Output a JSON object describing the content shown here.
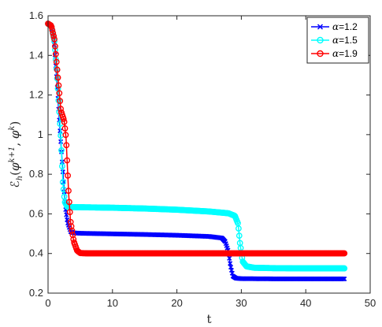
{
  "chart_data": {
    "type": "line",
    "xlabel": "t",
    "ylabel": "ℰ_h(φ^{k+1}, φ^k)",
    "ylabel_parts": {
      "main": "ℰ",
      "sub": "h",
      "open": "(",
      "phi1": "φ",
      "sup1": "k+1",
      "comma": ", ",
      "phi2": "φ",
      "sup2": "k",
      "close": ")"
    },
    "xlim": [
      0,
      50
    ],
    "ylim": [
      0.2,
      1.6
    ],
    "xticks": [
      "0",
      "10",
      "20",
      "30",
      "40",
      "50"
    ],
    "yticks": [
      "0.2",
      "0.4",
      "0.6",
      "0.8",
      "1",
      "1.2",
      "1.4",
      "1.6"
    ],
    "grid": false,
    "legend_position": "top-right",
    "x_end": 46,
    "series": [
      {
        "name": "α=1.2",
        "legend_var": "α",
        "legend_val": "=1.2",
        "color": "#0000ff",
        "marker": "x",
        "points": [
          [
            0,
            1.56
          ],
          [
            0.5,
            1.55
          ],
          [
            1,
            1.45
          ],
          [
            1.5,
            1.2
          ],
          [
            2,
            0.95
          ],
          [
            2.5,
            0.72
          ],
          [
            2.7,
            0.63
          ],
          [
            3,
            0.56
          ],
          [
            3.5,
            0.51
          ],
          [
            4,
            0.504
          ],
          [
            5,
            0.502
          ],
          [
            10,
            0.499
          ],
          [
            15,
            0.496
          ],
          [
            20,
            0.492
          ],
          [
            25,
            0.486
          ],
          [
            27,
            0.478
          ],
          [
            27.5,
            0.46
          ],
          [
            28,
            0.41
          ],
          [
            28.3,
            0.34
          ],
          [
            28.7,
            0.285
          ],
          [
            29.2,
            0.275
          ],
          [
            30,
            0.273
          ],
          [
            35,
            0.272
          ],
          [
            40,
            0.272
          ],
          [
            46,
            0.272
          ]
        ]
      },
      {
        "name": "α=1.5",
        "legend_var": "α",
        "legend_val": "=1.5",
        "color": "#00ffff",
        "marker": "circle-left",
        "points": [
          [
            0,
            1.56
          ],
          [
            0.5,
            1.55
          ],
          [
            1,
            1.47
          ],
          [
            1.5,
            1.25
          ],
          [
            2,
            0.98
          ],
          [
            2.3,
            0.76
          ],
          [
            2.6,
            0.66
          ],
          [
            3,
            0.635
          ],
          [
            4,
            0.634
          ],
          [
            10,
            0.631
          ],
          [
            15,
            0.627
          ],
          [
            20,
            0.621
          ],
          [
            25,
            0.612
          ],
          [
            28,
            0.603
          ],
          [
            29,
            0.59
          ],
          [
            29.5,
            0.55
          ],
          [
            29.8,
            0.45
          ],
          [
            30.2,
            0.36
          ],
          [
            30.8,
            0.335
          ],
          [
            32,
            0.328
          ],
          [
            35,
            0.326
          ],
          [
            40,
            0.325
          ],
          [
            46,
            0.325
          ]
        ]
      },
      {
        "name": "α=1.9",
        "legend_var": "α",
        "legend_val": "=1.9",
        "color": "#ff0000",
        "marker": "circle",
        "points": [
          [
            0,
            1.56
          ],
          [
            0.5,
            1.55
          ],
          [
            1,
            1.48
          ],
          [
            1.5,
            1.3
          ],
          [
            2,
            1.12
          ],
          [
            2.5,
            1.07
          ],
          [
            2.8,
            0.98
          ],
          [
            3.2,
            0.7
          ],
          [
            3.5,
            0.56
          ],
          [
            4,
            0.46
          ],
          [
            4.5,
            0.415
          ],
          [
            5,
            0.402
          ],
          [
            6,
            0.401
          ],
          [
            10,
            0.401
          ],
          [
            20,
            0.401
          ],
          [
            30,
            0.401
          ],
          [
            40,
            0.401
          ],
          [
            46,
            0.401
          ]
        ]
      }
    ]
  }
}
